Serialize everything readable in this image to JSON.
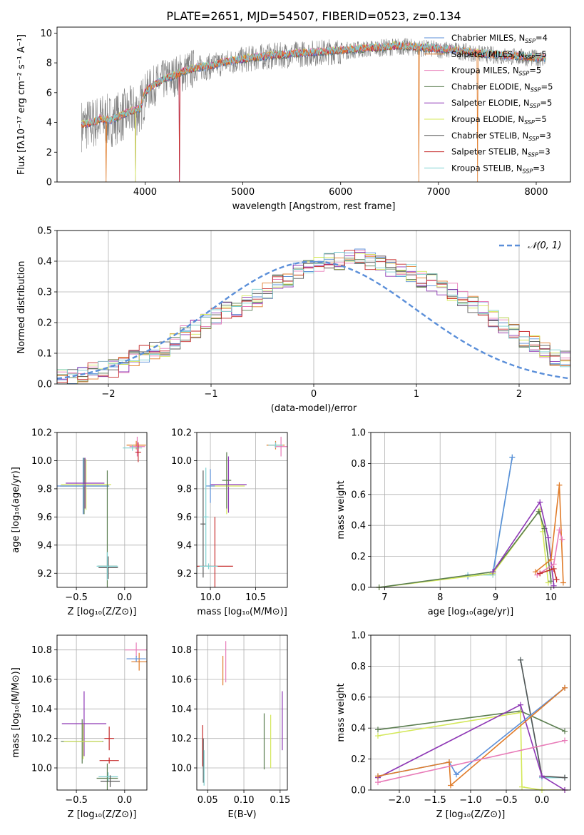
{
  "figure": {
    "title": "PLATE=2651, MJD=54507, FIBERID=0523, z=0.134"
  },
  "colors": {
    "series": [
      "#5b8fd9",
      "#e07b28",
      "#e87bb8",
      "#5a7d4f",
      "#8e37b5",
      "#d4e85a",
      "#555555",
      "#c62b2b",
      "#7fd1d1"
    ],
    "grid": "#b0b0b0",
    "data_spectrum": "#808080"
  },
  "chart_data": [
    {
      "id": "spectrum",
      "type": "line",
      "title": "PLATE=2651, MJD=54507, FIBERID=0523, z=0.134",
      "xlabel": "wavelength [Angstrom, rest frame]",
      "ylabel": "Flux [fλ10⁻¹⁷ erg cm⁻² s⁻¹ A⁻¹]",
      "xlim": [
        3100,
        8350
      ],
      "ylim": [
        0,
        10.4
      ],
      "xticks": [
        "4000",
        "5000",
        "6000",
        "7000",
        "8000"
      ],
      "yticks": [
        "0",
        "2",
        "4",
        "6",
        "8",
        "10"
      ],
      "grid": false,
      "legend_position": "right",
      "continuum_x": [
        3350,
        3450,
        3550,
        3650,
        3750,
        3850,
        3950,
        4000,
        4100,
        4200,
        4300,
        4400,
        4500,
        4600,
        4700,
        4800,
        4900,
        5000,
        5200,
        5400,
        5600,
        5800,
        6000,
        6200,
        6400,
        6600,
        6800,
        7000,
        7200,
        7400,
        7600,
        7800,
        8000,
        8100
      ],
      "continuum_y": [
        3.8,
        3.9,
        4.2,
        4.1,
        4.4,
        4.7,
        4.9,
        6.0,
        6.5,
        6.9,
        7.1,
        7.4,
        7.6,
        7.7,
        7.8,
        8.0,
        8.1,
        8.2,
        8.4,
        8.5,
        8.6,
        8.7,
        8.8,
        8.9,
        9.0,
        9.1,
        9.0,
        8.9,
        8.8,
        8.6,
        8.5,
        8.4,
        8.3,
        8.3
      ],
      "series": [
        {
          "name": "Chabrier MILES, N",
          "sub": "SSP",
          "suffix": "=4"
        },
        {
          "name": "Salpeter MILES, N",
          "sub": "SSP",
          "suffix": "=5"
        },
        {
          "name": "Kroupa MILES, N",
          "sub": "SSP",
          "suffix": "=5"
        },
        {
          "name": "Chabrier ELODIE, N",
          "sub": "SSP",
          "suffix": "=5"
        },
        {
          "name": "Salpeter ELODIE, N",
          "sub": "SSP",
          "suffix": "=5"
        },
        {
          "name": "Kroupa ELODIE, N",
          "sub": "SSP",
          "suffix": "=5"
        },
        {
          "name": "Chabrier STELIB, N",
          "sub": "SSP",
          "suffix": "=3"
        },
        {
          "name": "Salpeter STELIB, N",
          "sub": "SSP",
          "suffix": "=3"
        },
        {
          "name": "Kroupa STELIB, N",
          "sub": "SSP",
          "suffix": "=3"
        }
      ]
    },
    {
      "id": "residuals",
      "type": "line",
      "xlabel": "(data-model)/error",
      "ylabel": "Normed distribution",
      "xlim": [
        -2.5,
        2.5
      ],
      "ylim": [
        0,
        0.5
      ],
      "xticks": [
        -2,
        -1,
        0,
        1,
        2
      ],
      "yticks": [
        0.0,
        0.1,
        0.2,
        0.3,
        0.4,
        0.5
      ],
      "xticklabels": [
        "−2",
        "−1",
        "0",
        "1",
        "2"
      ],
      "yticklabels": [
        "0.0",
        "0.1",
        "0.2",
        "0.3",
        "0.4",
        "0.5"
      ],
      "grid": true,
      "legend_position": "top-right",
      "legend": "𝒩(0, 1)",
      "bin_edges_start": -2.5,
      "bin_width": 0.1,
      "histogram_reference": [
        0.02,
        0.02,
        0.03,
        0.04,
        0.05,
        0.05,
        0.06,
        0.08,
        0.1,
        0.11,
        0.12,
        0.14,
        0.16,
        0.18,
        0.2,
        0.22,
        0.24,
        0.24,
        0.26,
        0.28,
        0.3,
        0.33,
        0.34,
        0.37,
        0.38,
        0.39,
        0.4,
        0.4,
        0.42,
        0.41,
        0.4,
        0.39,
        0.38,
        0.37,
        0.36,
        0.34,
        0.33,
        0.31,
        0.3,
        0.28,
        0.26,
        0.24,
        0.21,
        0.19,
        0.17,
        0.15,
        0.13,
        0.11,
        0.09,
        0.08,
        0.07,
        0.06,
        0.05,
        0.05,
        0.04,
        0.04,
        0.03,
        0.03,
        0.02,
        0.02
      ]
    },
    {
      "id": "age-vs-Z",
      "type": "scatter",
      "xlabel": "Z [log₁₀(Z/Z⊙)]",
      "ylabel": "age  [log₁₀(age/yr)]",
      "xlim": [
        -0.7,
        0.23
      ],
      "ylim": [
        9.1,
        10.2
      ],
      "xticks": [
        -0.5,
        0.0
      ],
      "xticklabels": [
        "−0.5",
        "0.0"
      ],
      "yticks": [
        9.2,
        9.4,
        9.6,
        9.8,
        10.0,
        10.2
      ],
      "yticklabels": [
        "9.2",
        "9.4",
        "9.6",
        "9.8",
        "10.0",
        "10.2"
      ],
      "grid": true,
      "points": [
        {
          "x": 0.12,
          "y": 10.11,
          "dx": 0.1,
          "dy": 0.03,
          "c": 1
        },
        {
          "x": 0.13,
          "y": 10.1,
          "dx": 0.08,
          "dy": 0.07,
          "c": 2
        },
        {
          "x": 0.08,
          "y": 10.09,
          "dx": 0.1,
          "dy": 0.02,
          "c": 8
        },
        {
          "x": 0.14,
          "y": 10.06,
          "dx": 0.03,
          "dy": 0.07,
          "c": 7
        },
        {
          "x": -0.42,
          "y": 9.82,
          "dx": 0.25,
          "dy": 0.2,
          "c": 3
        },
        {
          "x": -0.4,
          "y": 9.83,
          "dx": 0.26,
          "dy": 0.18,
          "c": 5
        },
        {
          "x": -0.43,
          "y": 9.82,
          "dx": 0.27,
          "dy": 0.2,
          "c": 0
        },
        {
          "x": -0.41,
          "y": 9.84,
          "dx": 0.2,
          "dy": 0.18,
          "c": 4
        },
        {
          "x": -0.18,
          "y": 9.25,
          "dx": 0.1,
          "dy": 0.68,
          "c": 3
        },
        {
          "x": -0.17,
          "y": 9.24,
          "dx": 0.1,
          "dy": 0.08,
          "c": 6
        },
        {
          "x": -0.18,
          "y": 9.25,
          "dx": 0.11,
          "dy": 0.1,
          "c": 8
        }
      ]
    },
    {
      "id": "age-vs-mass",
      "type": "scatter",
      "xlabel": "mass [log₁₀(M/M⊙)]",
      "ylabel": "",
      "xlim": [
        9.85,
        10.85
      ],
      "ylim": [
        9.1,
        10.2
      ],
      "xticks": [
        10.0,
        10.5
      ],
      "xticklabels": [
        "10.0",
        "10.5"
      ],
      "yticks": [
        9.2,
        9.4,
        9.6,
        9.8,
        10.0,
        10.2
      ],
      "yticklabels": [
        "9.2",
        "9.4",
        "9.6",
        "9.8",
        "10.0",
        "10.2"
      ],
      "grid": true,
      "points": [
        {
          "x": 10.72,
          "y": 10.11,
          "dx": 0.1,
          "dy": 0.03,
          "c": 1
        },
        {
          "x": 10.78,
          "y": 10.1,
          "dx": 0.07,
          "dy": 0.07,
          "c": 2
        },
        {
          "x": 10.72,
          "y": 10.11,
          "dx": 0.08,
          "dy": 0.02,
          "c": 8
        },
        {
          "x": 10.2,
          "y": 9.83,
          "dx": 0.2,
          "dy": 0.2,
          "c": 4
        },
        {
          "x": 10.18,
          "y": 9.82,
          "dx": 0.2,
          "dy": 0.2,
          "c": 5
        },
        {
          "x": 10.18,
          "y": 9.86,
          "dx": 0.05,
          "dy": 0.2,
          "c": 3
        },
        {
          "x": 10.0,
          "y": 9.82,
          "dx": 0.05,
          "dy": 0.12,
          "c": 0
        },
        {
          "x": 9.92,
          "y": 9.55,
          "dx": 0.03,
          "dy": 0.38,
          "c": 6
        },
        {
          "x": 9.95,
          "y": 9.6,
          "dx": 0.03,
          "dy": 0.35,
          "c": 8
        },
        {
          "x": 10.05,
          "y": 9.25,
          "dx": 0.2,
          "dy": 0.35,
          "c": 7
        },
        {
          "x": 9.98,
          "y": 9.25,
          "dx": 0.1,
          "dy": 0.02,
          "c": 8
        }
      ]
    },
    {
      "id": "mass-weight-vs-age",
      "type": "line",
      "xlabel": "age  [log₁₀(age/yr)]",
      "ylabel": "mass weight",
      "xlim": [
        6.75,
        10.35
      ],
      "ylim": [
        0.0,
        1.0
      ],
      "xticks": [
        7,
        8,
        9,
        10
      ],
      "xticklabels": [
        "7",
        "8",
        "9",
        "10"
      ],
      "yticks": [
        0.0,
        0.2,
        0.4,
        0.6,
        0.8,
        1.0
      ],
      "yticklabels": [
        "0.0",
        "0.2",
        "0.4",
        "0.6",
        "0.8",
        "1.0"
      ],
      "grid": true,
      "lines": [
        {
          "c": 8,
          "x": [
            8.5,
            8.95,
            9.3
          ],
          "y": [
            0.08,
            0.08,
            0.84
          ]
        },
        {
          "c": 0,
          "x": [
            8.5,
            8.95,
            9.3
          ],
          "y": [
            0.07,
            0.09,
            0.84
          ]
        },
        {
          "c": 5,
          "x": [
            6.9,
            8.95,
            9.8,
            9.85,
            9.95
          ],
          "y": [
            0.0,
            0.09,
            0.5,
            0.36,
            0.03
          ]
        },
        {
          "c": 3,
          "x": [
            6.9,
            8.95,
            9.78,
            9.88,
            10.0
          ],
          "y": [
            0.0,
            0.1,
            0.49,
            0.38,
            0.04
          ]
        },
        {
          "c": 4,
          "x": [
            8.95,
            9.8,
            9.95,
            10.05
          ],
          "y": [
            0.1,
            0.55,
            0.32,
            0.01
          ]
        },
        {
          "c": 1,
          "x": [
            9.72,
            10.0,
            10.15,
            10.22
          ],
          "y": [
            0.1,
            0.18,
            0.66,
            0.03
          ]
        },
        {
          "c": 2,
          "x": [
            9.75,
            10.05,
            10.15,
            10.2
          ],
          "y": [
            0.08,
            0.15,
            0.37,
            0.31
          ]
        },
        {
          "c": 7,
          "x": [
            9.8,
            10.05,
            10.1
          ],
          "y": [
            0.09,
            0.12,
            0.05
          ]
        }
      ]
    },
    {
      "id": "mass-vs-Z",
      "type": "scatter",
      "xlabel": "Z [log₁₀(Z/Z⊙)]",
      "ylabel": "mass [log₁₀(M/M⊙)]",
      "xlim": [
        -0.7,
        0.23
      ],
      "ylim": [
        9.85,
        10.9
      ],
      "xticks": [
        -0.5,
        0.0
      ],
      "xticklabels": [
        "−0.5",
        "0.0"
      ],
      "yticks": [
        10.0,
        10.2,
        10.4,
        10.6,
        10.8
      ],
      "yticklabels": [
        "10.0",
        "10.2",
        "10.4",
        "10.6",
        "10.8"
      ],
      "grid": true,
      "points": [
        {
          "x": 0.15,
          "y": 10.72,
          "dx": 0.08,
          "dy": 0.06,
          "c": 1
        },
        {
          "x": 0.12,
          "y": 10.8,
          "dx": 0.12,
          "dy": 0.05,
          "c": 2
        },
        {
          "x": 0.12,
          "y": 10.74,
          "dx": 0.1,
          "dy": 0.02,
          "c": 0
        },
        {
          "x": -0.42,
          "y": 10.3,
          "dx": 0.23,
          "dy": 0.22,
          "c": 4
        },
        {
          "x": -0.44,
          "y": 10.18,
          "dx": 0.22,
          "dy": 0.15,
          "c": 3
        },
        {
          "x": -0.43,
          "y": 10.18,
          "dx": 0.2,
          "dy": 0.12,
          "c": 5
        },
        {
          "x": -0.16,
          "y": 10.2,
          "dx": 0.05,
          "dy": 0.08,
          "c": 7
        },
        {
          "x": -0.16,
          "y": 10.05,
          "dx": 0.1,
          "dy": 0.02,
          "c": 7
        },
        {
          "x": -0.18,
          "y": 9.93,
          "dx": 0.11,
          "dy": 0.1,
          "c": 3
        },
        {
          "x": -0.17,
          "y": 9.94,
          "dx": 0.1,
          "dy": 0.03,
          "c": 8
        },
        {
          "x": -0.15,
          "y": 9.91,
          "dx": 0.1,
          "dy": 0.04,
          "c": 6
        }
      ]
    },
    {
      "id": "mass-vs-EBV",
      "type": "scatter",
      "xlabel": "E(B-V)",
      "ylabel": "",
      "xlim": [
        0.035,
        0.16
      ],
      "ylim": [
        9.85,
        10.9
      ],
      "xticks": [
        0.05,
        0.1,
        0.15
      ],
      "xticklabels": [
        "0.05",
        "0.10",
        "0.15"
      ],
      "yticks": [
        10.0,
        10.2,
        10.4,
        10.6,
        10.8
      ],
      "yticklabels": [
        "10.0",
        "10.2",
        "10.4",
        "10.6",
        "10.8"
      ],
      "grid": true,
      "points": [
        {
          "x": 0.043,
          "y": 10.15,
          "dx": 0,
          "dy": 0.14,
          "c": 7
        },
        {
          "x": 0.044,
          "y": 10.05,
          "dx": 0,
          "dy": 0.15,
          "c": 6
        },
        {
          "x": 0.045,
          "y": 10.0,
          "dx": 0,
          "dy": 0.12,
          "c": 8
        },
        {
          "x": 0.071,
          "y": 10.66,
          "dx": 0,
          "dy": 0.1,
          "c": 1
        },
        {
          "x": 0.075,
          "y": 10.72,
          "dx": 0,
          "dy": 0.14,
          "c": 2
        },
        {
          "x": 0.128,
          "y": 10.18,
          "dx": 0,
          "dy": 0.19,
          "c": 3
        },
        {
          "x": 0.137,
          "y": 10.18,
          "dx": 0,
          "dy": 0.18,
          "c": 5
        },
        {
          "x": 0.153,
          "y": 10.32,
          "dx": 0,
          "dy": 0.2,
          "c": 4
        }
      ]
    },
    {
      "id": "mass-weight-vs-Z",
      "type": "line",
      "xlabel": "Z [log₁₀(Z/Z⊙)]",
      "ylabel": "mass weight",
      "xlim": [
        -2.4,
        0.4
      ],
      "ylim": [
        0.0,
        1.0
      ],
      "xticks": [
        -2.0,
        -1.5,
        -1.0,
        -0.5,
        0.0
      ],
      "xticklabels": [
        "−2.0",
        "−1.5",
        "−1.0",
        "−0.5",
        "0.0"
      ],
      "yticks": [
        0.0,
        0.2,
        0.4,
        0.6,
        0.8,
        1.0
      ],
      "yticklabels": [
        "0.0",
        "0.2",
        "0.4",
        "0.6",
        "0.8",
        "1.0"
      ],
      "grid": true,
      "lines": [
        {
          "c": 8,
          "x": [
            -0.3,
            0.0,
            0.32
          ],
          "y": [
            0.84,
            0.08,
            0.08
          ]
        },
        {
          "c": 6,
          "x": [
            -0.3,
            0.0,
            0.32
          ],
          "y": [
            0.84,
            0.09,
            0.08
          ]
        },
        {
          "c": 3,
          "x": [
            -2.3,
            -0.3,
            0.32
          ],
          "y": [
            0.39,
            0.51,
            0.38
          ]
        },
        {
          "c": 5,
          "x": [
            -2.3,
            -0.3,
            -0.28,
            0.0,
            0.32
          ],
          "y": [
            0.35,
            0.5,
            0.02,
            0.0,
            0.0
          ]
        },
        {
          "c": 4,
          "x": [
            -2.3,
            -0.3,
            0.0,
            0.32
          ],
          "y": [
            0.08,
            0.55,
            0.09,
            0.0
          ]
        },
        {
          "c": 0,
          "x": [
            -2.3,
            -1.3,
            -1.2,
            0.32
          ],
          "y": [
            0.09,
            0.18,
            0.1,
            0.66
          ]
        },
        {
          "c": 1,
          "x": [
            -2.3,
            -1.3,
            -1.28,
            0.32
          ],
          "y": [
            0.09,
            0.18,
            0.03,
            0.66
          ]
        },
        {
          "c": 2,
          "x": [
            -2.3,
            0.32
          ],
          "y": [
            0.05,
            0.32
          ]
        }
      ]
    }
  ]
}
